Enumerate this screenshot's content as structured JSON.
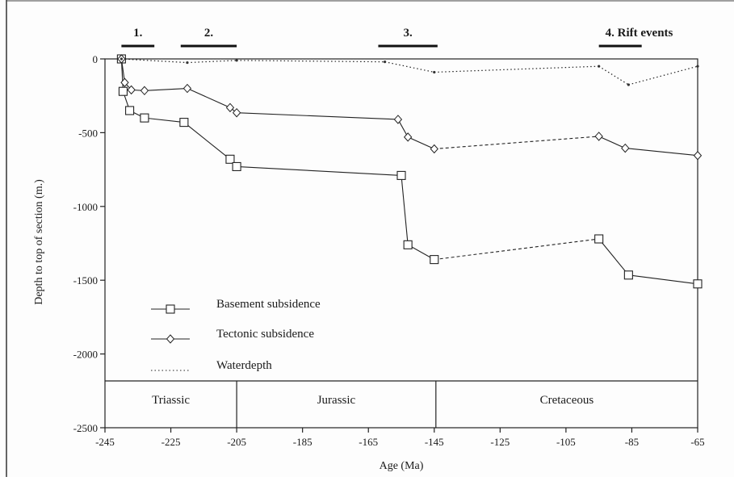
{
  "chart_data": {
    "type": "line",
    "xlabel": "Age (Ma)",
    "ylabel": "Depth to top of section (m.)",
    "xlim": [
      -245,
      -65
    ],
    "ylim": [
      -2500,
      0
    ],
    "x_ticks": [
      -245,
      -225,
      -205,
      -185,
      -165,
      -145,
      -125,
      -105,
      -85,
      -65
    ],
    "y_ticks": [
      0,
      -500,
      -1000,
      -1500,
      -2000,
      -2500
    ],
    "grid": false,
    "legend_position": "bottom-left",
    "series": [
      {
        "name": "Basement subsidence",
        "marker": "square",
        "points": [
          [
            -240,
            0
          ],
          [
            -239.5,
            -220
          ],
          [
            -237.5,
            -350
          ],
          [
            -233,
            -400
          ],
          [
            -221,
            -430
          ],
          [
            -207,
            -680
          ],
          [
            -205,
            -730
          ],
          [
            -155,
            -790
          ],
          [
            -153,
            -1260
          ],
          [
            -145,
            -1360
          ],
          [
            -95,
            -1220
          ],
          [
            -86,
            -1465
          ],
          [
            -65,
            -1525
          ]
        ]
      },
      {
        "name": "Tectonic subsidence",
        "marker": "diamond",
        "points": [
          [
            -240,
            0
          ],
          [
            -239,
            -160
          ],
          [
            -237,
            -210
          ],
          [
            -233,
            -215
          ],
          [
            -220,
            -200
          ],
          [
            -207,
            -330
          ],
          [
            -205,
            -365
          ],
          [
            -156,
            -410
          ],
          [
            -153,
            -530
          ],
          [
            -145,
            -610
          ],
          [
            -95,
            -525
          ],
          [
            -87,
            -605
          ],
          [
            -65,
            -655
          ]
        ]
      },
      {
        "name": "Waterdepth",
        "marker": "dot",
        "points": [
          [
            -240,
            0
          ],
          [
            -220,
            -25
          ],
          [
            -205,
            -10
          ],
          [
            -160,
            -20
          ],
          [
            -145,
            -90
          ],
          [
            -95,
            -50
          ],
          [
            -86,
            -175
          ],
          [
            -65,
            -50
          ]
        ]
      }
    ],
    "periods": [
      {
        "label": "Triassic",
        "from": -245,
        "to": -205
      },
      {
        "label": "Jurassic",
        "from": -205,
        "to": -144.5
      },
      {
        "label": "Cretaceous",
        "from": -144.5,
        "to": -65
      }
    ],
    "events": [
      {
        "label": "1.",
        "from": -240,
        "to": -230
      },
      {
        "label": "2.",
        "from": -222,
        "to": -205
      },
      {
        "label": "3.",
        "from": -162,
        "to": -144
      },
      {
        "label": "4. Rift events",
        "from": -95,
        "to": -82
      }
    ]
  }
}
